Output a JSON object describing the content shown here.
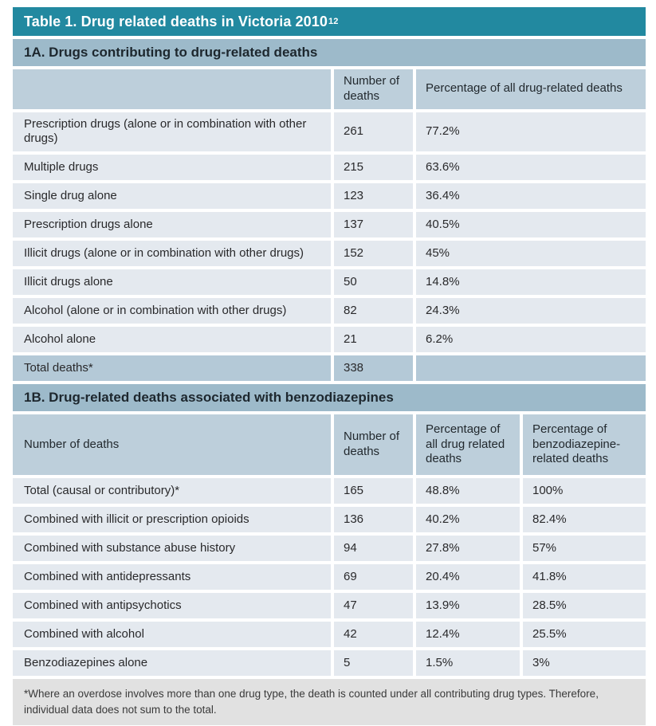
{
  "title": {
    "text": "Table 1. Drug related deaths in Victoria 2010",
    "sup": "12"
  },
  "colors": {
    "title_bar": "#2289A0",
    "section_bar": "#9DBACA",
    "column_header": "#BDCFDB",
    "data_row": "#E4E9EF",
    "total_row": "#B4C9D7",
    "footnote_bg": "#E1E1E1",
    "title_text": "#FFFFFF"
  },
  "section_a": {
    "heading": "1A. Drugs contributing to drug-related deaths",
    "header": {
      "col1": "",
      "col2": "Number of deaths",
      "col3": "Percentage of all drug-related deaths"
    },
    "rows": [
      {
        "label": "Prescription drugs (alone or in combination with other drugs)",
        "deaths": "261",
        "pct": "77.2%"
      },
      {
        "label": "Multiple drugs",
        "deaths": "215",
        "pct": "63.6%"
      },
      {
        "label": "Single drug alone",
        "deaths": "123",
        "pct": "36.4%"
      },
      {
        "label": "Prescription drugs alone",
        "deaths": "137",
        "pct": "40.5%"
      },
      {
        "label": "Illicit drugs (alone or in combination with other drugs)",
        "deaths": "152",
        "pct": "45%"
      },
      {
        "label": "Illicit drugs alone",
        "deaths": "50",
        "pct": "14.8%"
      },
      {
        "label": "Alcohol (alone or in combination with other drugs)",
        "deaths": "82",
        "pct": "24.3%"
      },
      {
        "label": "Alcohol alone",
        "deaths": "21",
        "pct": "6.2%"
      }
    ],
    "total": {
      "label": "Total deaths*",
      "deaths": "338",
      "pct": ""
    }
  },
  "section_b": {
    "heading": "1B. Drug-related deaths associated with benzodiazepines",
    "header": {
      "col1": "Number of deaths",
      "col2": "Number of deaths",
      "col3": "Percentage of all drug related deaths",
      "col4": "Percentage of benzodiazepine-related deaths"
    },
    "rows": [
      {
        "label": "Total (causal or contributory)*",
        "deaths": "165",
        "pct_all": "48.8%",
        "pct_benzo": "100%"
      },
      {
        "label": "Combined with illicit or prescription opioids",
        "deaths": "136",
        "pct_all": "40.2%",
        "pct_benzo": "82.4%"
      },
      {
        "label": "Combined with substance abuse history",
        "deaths": "94",
        "pct_all": "27.8%",
        "pct_benzo": "57%"
      },
      {
        "label": "Combined with antidepressants",
        "deaths": "69",
        "pct_all": "20.4%",
        "pct_benzo": "41.8%"
      },
      {
        "label": "Combined with antipsychotics",
        "deaths": "47",
        "pct_all": "13.9%",
        "pct_benzo": "28.5%"
      },
      {
        "label": "Combined with alcohol",
        "deaths": "42",
        "pct_all": "12.4%",
        "pct_benzo": "25.5%"
      },
      {
        "label": "Benzodiazepines alone",
        "deaths": "5",
        "pct_all": "1.5%",
        "pct_benzo": "3%"
      }
    ]
  },
  "footnote": {
    "text": "*Where an overdose involves more than one drug type, the death is counted under all contributing drug types. Therefore, individual data does not sum to the total."
  }
}
